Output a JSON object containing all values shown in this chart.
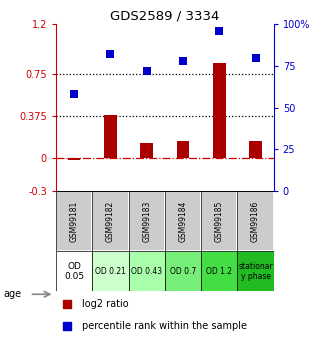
{
  "title": "GDS2589 / 3334",
  "samples": [
    "GSM99181",
    "GSM99182",
    "GSM99183",
    "GSM99184",
    "GSM99185",
    "GSM99186"
  ],
  "log2_ratio": [
    -0.02,
    0.38,
    0.13,
    0.15,
    0.85,
    0.15
  ],
  "percentile_rank_pct": [
    58,
    82,
    72,
    78,
    96,
    80
  ],
  "ylim_left": [
    -0.3,
    1.2
  ],
  "ylim_right": [
    0,
    100
  ],
  "yticks_left": [
    -0.3,
    0,
    0.375,
    0.75,
    1.2
  ],
  "yticks_right": [
    0,
    25,
    50,
    75,
    100
  ],
  "ytick_labels_left": [
    "-0.3",
    "0",
    "0.375",
    "0.75",
    "1.2"
  ],
  "ytick_labels_right": [
    "0",
    "25",
    "50",
    "75",
    "100%"
  ],
  "hlines": [
    0.375,
    0.75
  ],
  "zero_line": 0,
  "bar_color": "#aa0000",
  "dot_color": "#0000cc",
  "age_labels": [
    "OD\n0.05",
    "OD 0.21",
    "OD 0.43",
    "OD 0.7",
    "OD 1.2",
    "stationar\ny phase"
  ],
  "age_bg_colors": [
    "#ffffff",
    "#ccffcc",
    "#aaffaa",
    "#77ee77",
    "#44dd44",
    "#22bb22"
  ],
  "sample_bg_color": "#cccccc",
  "legend_red": "log2 ratio",
  "legend_blue": "percentile rank within the sample",
  "bar_width": 0.35,
  "dot_size": 28,
  "left_spine_color": "#cc0000",
  "right_spine_color": "#0000cc"
}
